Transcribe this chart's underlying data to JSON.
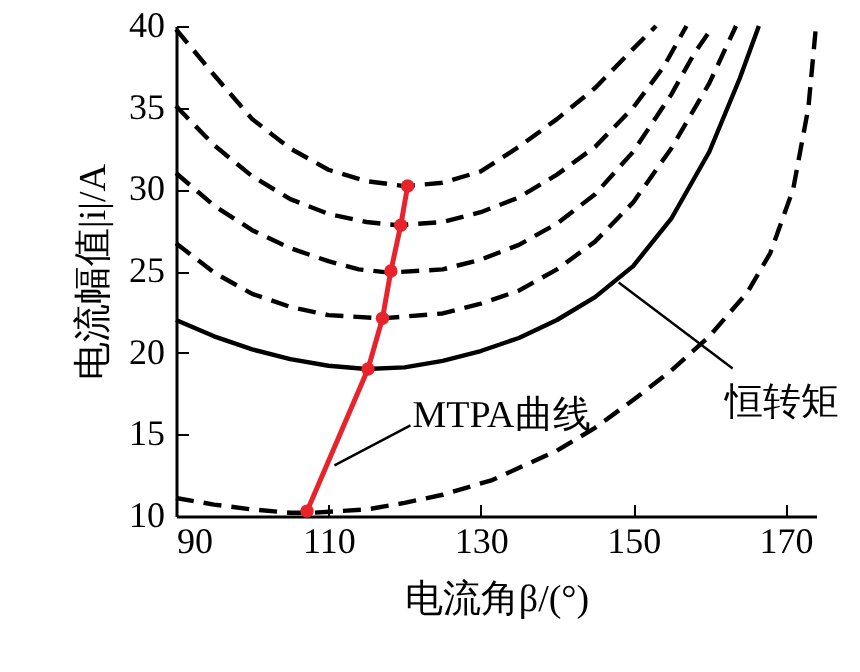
{
  "chart_data": {
    "type": "line",
    "xlabel": "电流角β/(°)",
    "ylabel": "电流幅值|i|/A",
    "xlim": [
      90,
      174
    ],
    "xticks": [
      90,
      110,
      130,
      150,
      170
    ],
    "ylim": [
      10,
      40
    ],
    "yticks": [
      10,
      15,
      20,
      25,
      30,
      35,
      40
    ],
    "grid": false,
    "series": [
      {
        "color": "#000000",
        "line_style": "dashed",
        "marker": "none",
        "x": [
          90,
          95,
          100,
          105,
          110,
          115,
          120,
          125,
          130,
          135,
          140,
          145,
          150,
          153
        ],
        "values": [
          39.8,
          37,
          34.3,
          32.5,
          31.2,
          30.5,
          30.2,
          30.4,
          31.1,
          32.6,
          34.3,
          36.2,
          38.6,
          40
        ]
      },
      {
        "color": "#000000",
        "line_style": "dashed",
        "marker": "none",
        "x": [
          90,
          95,
          100,
          105,
          110,
          115,
          119,
          125,
          130,
          135,
          140,
          145,
          150,
          154,
          157
        ],
        "values": [
          35.1,
          32.7,
          30.8,
          29.4,
          28.5,
          28,
          27.8,
          28,
          28.6,
          29.5,
          30.9,
          32.6,
          35,
          37.5,
          40
        ]
      },
      {
        "color": "#000000",
        "line_style": "dashed",
        "marker": "none",
        "x": [
          90,
          95,
          100,
          105,
          110,
          114,
          118,
          125,
          130,
          135,
          140,
          145,
          150,
          155,
          158,
          160.5
        ],
        "values": [
          31,
          29,
          27.5,
          26.4,
          25.6,
          25.1,
          24.9,
          25.1,
          25.7,
          26.6,
          27.9,
          29.7,
          32.3,
          35.8,
          38.3,
          40
        ]
      },
      {
        "color": "#000000",
        "line_style": "dashed",
        "marker": "none",
        "x": [
          90,
          95,
          100,
          105,
          110,
          117,
          125,
          130,
          135,
          140,
          145,
          150,
          155,
          160,
          163.5
        ],
        "values": [
          26.7,
          24.9,
          23.6,
          22.8,
          22.3,
          22.1,
          22.4,
          23,
          23.8,
          25.1,
          26.8,
          29.2,
          32.5,
          36.5,
          40
        ]
      },
      {
        "color": "#000000",
        "line_style": "solid",
        "marker": "none",
        "x": [
          90,
          95,
          100,
          105,
          110,
          115,
          120,
          125,
          130,
          135,
          140,
          145,
          150,
          155,
          160,
          164,
          166.5
        ],
        "values": [
          22,
          21,
          20.2,
          19.6,
          19.2,
          19,
          19.1,
          19.5,
          20.1,
          20.9,
          22,
          23.4,
          25.3,
          28.2,
          32.3,
          36.8,
          40
        ]
      },
      {
        "color": "#000000",
        "line_style": "dashed",
        "marker": "none",
        "x": [
          90,
          95,
          100,
          105,
          108,
          115,
          120,
          125,
          131.5,
          140,
          145,
          150,
          155,
          160,
          165,
          168,
          171,
          173,
          174
        ],
        "values": [
          11.1,
          10.7,
          10.4,
          10.2,
          10.2,
          10.4,
          10.8,
          11.3,
          12.2,
          14,
          15.4,
          17.1,
          18.9,
          21,
          23.7,
          26.1,
          30,
          35,
          40
        ]
      },
      {
        "color": "#e8232b",
        "line_style": "solid",
        "marker": "circle",
        "x": [
          107.2,
          115.2,
          117.1,
          118.2,
          119.5,
          120.4
        ],
        "values": [
          10.3,
          19,
          22.1,
          25,
          27.8,
          30.2
        ]
      }
    ],
    "annotations": [
      {
        "text": "MTPA曲线",
        "x": 110.8,
        "y": 13.1
      },
      {
        "text": "恒转矩",
        "x": 148.1,
        "y": 24.3
      }
    ]
  }
}
